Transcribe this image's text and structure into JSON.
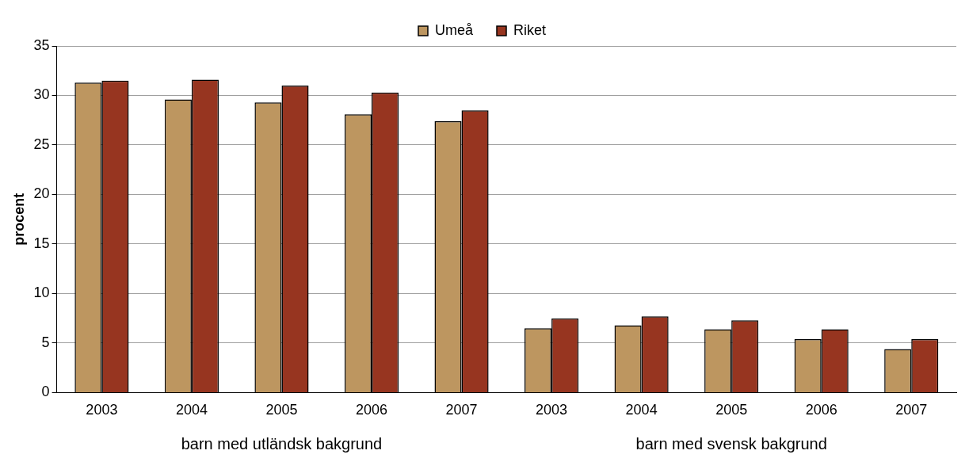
{
  "chart_data": {
    "type": "bar",
    "ylabel": "procent",
    "categories": [
      "2003",
      "2004",
      "2005",
      "2006",
      "2007",
      "2003",
      "2004",
      "2005",
      "2006",
      "2007"
    ],
    "series": [
      {
        "name": "Umeå",
        "color": "#bd9660",
        "values": [
          31.3,
          29.6,
          29.3,
          28.1,
          27.4,
          6.5,
          6.8,
          6.4,
          5.4,
          4.4
        ]
      },
      {
        "name": "Riket",
        "color": "#973520",
        "values": [
          31.5,
          31.6,
          31.0,
          30.3,
          28.5,
          7.5,
          7.7,
          7.3,
          6.4,
          5.4
        ]
      }
    ],
    "ylim": [
      0,
      35
    ],
    "yticks": [
      0,
      5,
      10,
      15,
      20,
      25,
      30,
      35
    ],
    "grid": "y",
    "legend": "top",
    "annotations": [
      "barn med utländsk bakgrund",
      "barn med svensk bakgrund"
    ]
  }
}
